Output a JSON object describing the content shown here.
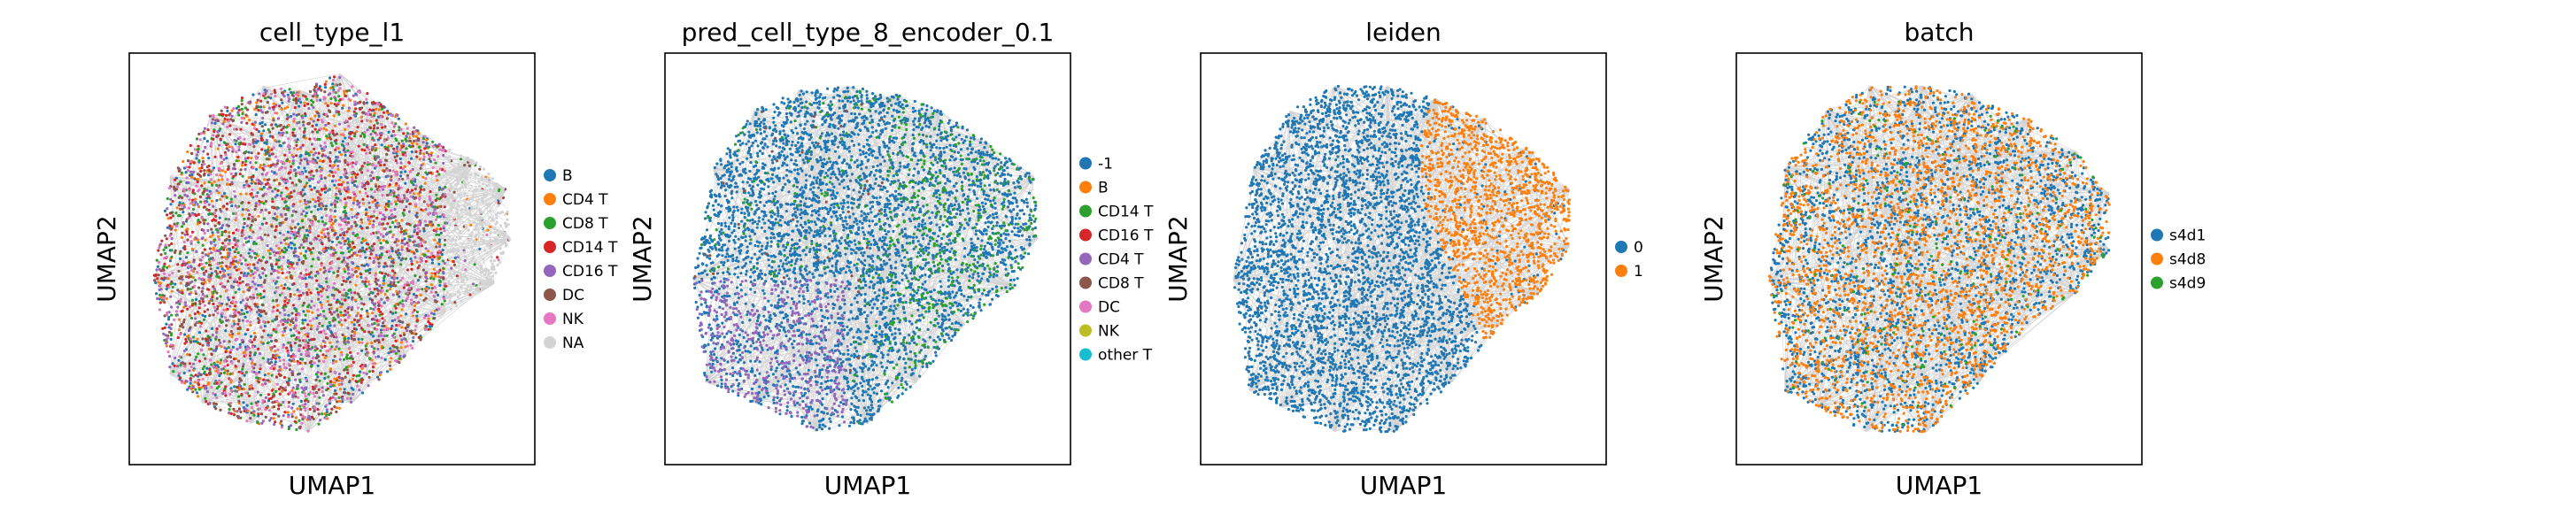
{
  "chart_data": [
    {
      "type": "scatter",
      "title": "cell_type_l1",
      "xlabel": "UMAP1",
      "ylabel": "UMAP2",
      "grid": false,
      "legend_position": "right",
      "legend": [
        {
          "label": "B",
          "color": "#1f77b4"
        },
        {
          "label": "CD4 T",
          "color": "#ff7f0e"
        },
        {
          "label": "CD8 T",
          "color": "#2ca02c"
        },
        {
          "label": "CD14 T",
          "color": "#d62728"
        },
        {
          "label": "CD16 T",
          "color": "#9467bd"
        },
        {
          "label": "DC",
          "color": "#8c564b"
        },
        {
          "label": "NK",
          "color": "#e377c2"
        },
        {
          "label": "NA",
          "color": "#d3d3d3"
        }
      ]
    },
    {
      "type": "scatter",
      "title": "pred_cell_type_8_encoder_0.1",
      "xlabel": "UMAP1",
      "ylabel": "UMAP2",
      "grid": false,
      "legend_position": "right",
      "legend": [
        {
          "label": "-1",
          "color": "#1f77b4"
        },
        {
          "label": "B",
          "color": "#ff7f0e"
        },
        {
          "label": "CD14 T",
          "color": "#2ca02c"
        },
        {
          "label": "CD16 T",
          "color": "#d62728"
        },
        {
          "label": "CD4 T",
          "color": "#9467bd"
        },
        {
          "label": "CD8 T",
          "color": "#8c564b"
        },
        {
          "label": "DC",
          "color": "#e377c2"
        },
        {
          "label": "NK",
          "color": "#bcbd22"
        },
        {
          "label": "other T",
          "color": "#17becf"
        }
      ]
    },
    {
      "type": "scatter",
      "title": "leiden",
      "xlabel": "UMAP1",
      "ylabel": "UMAP2",
      "grid": false,
      "legend_position": "right",
      "legend": [
        {
          "label": "0",
          "color": "#1f77b4"
        },
        {
          "label": "1",
          "color": "#ff7f0e"
        }
      ]
    },
    {
      "type": "scatter",
      "title": "batch",
      "xlabel": "UMAP1",
      "ylabel": "UMAP2",
      "grid": false,
      "legend_position": "right",
      "legend": [
        {
          "label": "s4d1",
          "color": "#1f77b4"
        },
        {
          "label": "s4d8",
          "color": "#ff7f0e"
        },
        {
          "label": "s4d9",
          "color": "#2ca02c"
        }
      ]
    }
  ]
}
